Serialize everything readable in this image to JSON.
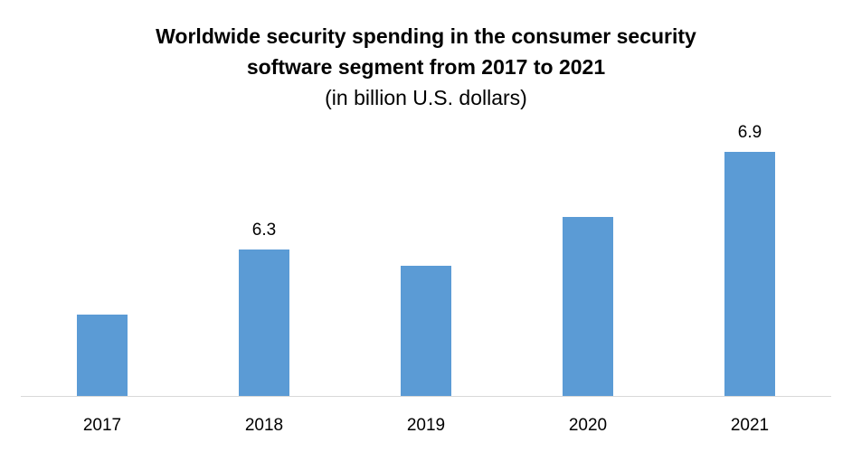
{
  "chart_data": {
    "type": "bar",
    "title": "Worldwide security spending in the consumer security software segment from 2017 to 2021",
    "title_line1": "Worldwide security spending in the consumer security",
    "title_line2": "software segment from 2017 to 2021",
    "subtitle": "(in billion U.S. dollars)",
    "categories": [
      "2017",
      "2018",
      "2019",
      "2020",
      "2021"
    ],
    "values": [
      5.9,
      6.3,
      6.2,
      6.5,
      6.9
    ],
    "data_labels": [
      "",
      "6.3",
      "",
      "",
      "6.9"
    ],
    "ylim": [
      5.4,
      7.0
    ],
    "grid": false,
    "legend": "none",
    "bar_color": "#5B9BD5",
    "xlabel": "",
    "ylabel": ""
  }
}
